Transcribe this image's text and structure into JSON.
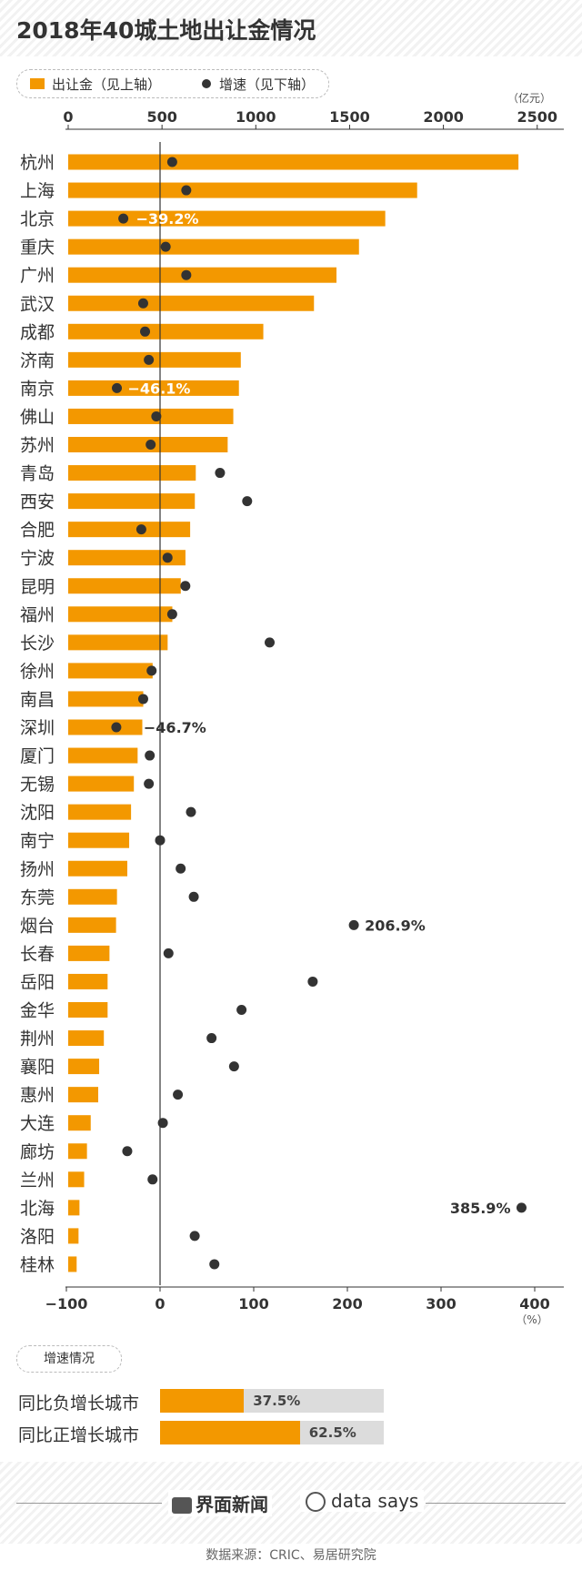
{
  "title": "2018年40城土地出让金情况",
  "legend": {
    "bar_label": "出让金（见上轴）",
    "dot_label": "增速（见下轴）"
  },
  "colors": {
    "bar": "#F39800",
    "dot": "#333333",
    "grey_track": "#dcdcdc"
  },
  "chart_data": {
    "type": "bar",
    "orientation": "horizontal",
    "categories": [
      "杭州",
      "上海",
      "北京",
      "重庆",
      "广州",
      "武汉",
      "成都",
      "济南",
      "南京",
      "佛山",
      "苏州",
      "青岛",
      "西安",
      "合肥",
      "宁波",
      "昆明",
      "福州",
      "长沙",
      "徐州",
      "南昌",
      "深圳",
      "厦门",
      "无锡",
      "沈阳",
      "南宁",
      "扬州",
      "东莞",
      "烟台",
      "长春",
      "岳阳",
      "金华",
      "荆州",
      "襄阳",
      "惠州",
      "大连",
      "廊坊",
      "兰州",
      "北海",
      "洛阳",
      "桂林"
    ],
    "series": [
      {
        "name": "出让金（见上轴）",
        "axis": "top",
        "values": [
          2400,
          1860,
          1690,
          1550,
          1430,
          1310,
          1040,
          920,
          910,
          880,
          850,
          680,
          675,
          650,
          625,
          600,
          555,
          530,
          450,
          400,
          395,
          370,
          350,
          335,
          325,
          315,
          260,
          255,
          220,
          210,
          210,
          190,
          165,
          160,
          120,
          100,
          85,
          60,
          55,
          45
        ]
      },
      {
        "name": "增速（见下轴）",
        "axis": "bottom",
        "type": "scatter",
        "values": [
          13,
          28,
          -39.2,
          6,
          28,
          -18,
          -16,
          -12,
          -46.1,
          -4,
          -10,
          64,
          93,
          -20,
          8,
          27,
          13,
          117,
          -9,
          -18,
          -46.7,
          -11,
          -12,
          33,
          0,
          22,
          36,
          206.9,
          9,
          163,
          87,
          55,
          79,
          19,
          3,
          -35,
          -8,
          385.9,
          37,
          58
        ]
      }
    ],
    "top_axis": {
      "ticks": [
        0,
        500,
        1000,
        1500,
        2000,
        2500
      ],
      "unit": "（亿元）",
      "range": [
        0,
        2550
      ]
    },
    "bottom_axis": {
      "ticks": [
        -100,
        0,
        100,
        200,
        300,
        400
      ],
      "unit": "（%）",
      "range": [
        -100,
        420
      ]
    },
    "annotations": [
      {
        "category": "北京",
        "text": "−39.2%"
      },
      {
        "category": "南京",
        "text": "−46.1%"
      },
      {
        "category": "深圳",
        "text": "−46.7%"
      },
      {
        "category": "烟台",
        "text": "206.9%"
      },
      {
        "category": "北海",
        "text": "385.9%"
      }
    ]
  },
  "growth_summary": {
    "title": "增速情况",
    "rows": [
      {
        "label": "同比负增长城市",
        "value": 37.5,
        "text": "37.5%"
      },
      {
        "label": "同比正增长城市",
        "value": 62.5,
        "text": "62.5%"
      }
    ]
  },
  "footer": {
    "brand_jiemian": "界面新闻",
    "brand_datasays": "data says",
    "source": "数据来源：CRIC、易居研究院"
  }
}
